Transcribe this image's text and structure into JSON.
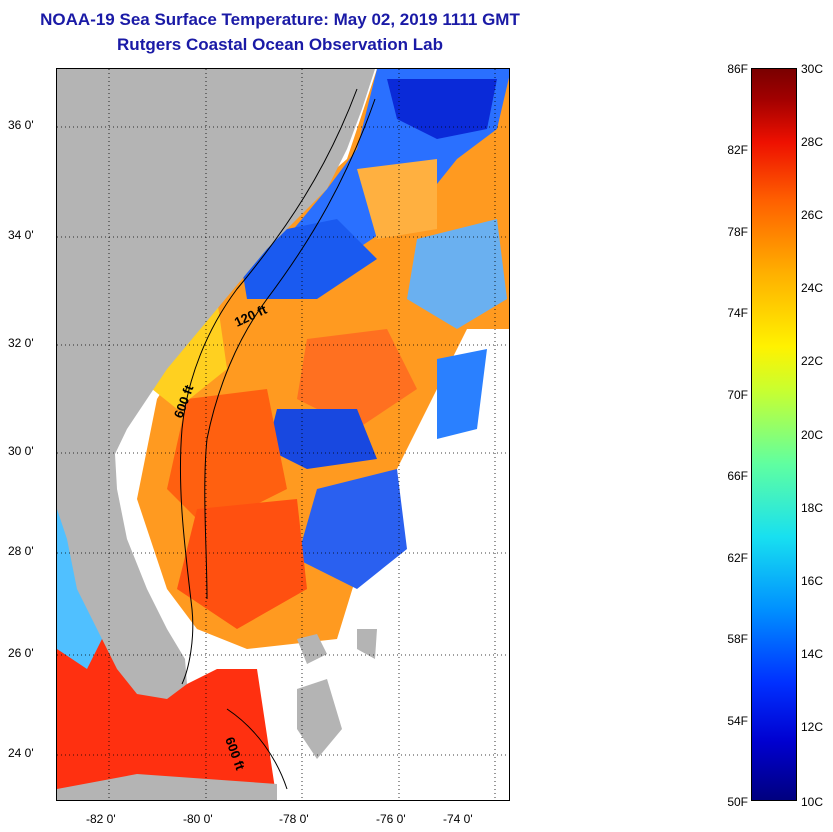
{
  "header": {
    "title_line1": "NOAA-19 Sea Surface Temperature:  May 02, 2019 1111 GMT",
    "title_line2": "Rutgers Coastal Ocean Observation Lab"
  },
  "map": {
    "lat_labels": [
      "36 0'",
      "34 0'",
      "32 0'",
      "30 0'",
      "28 0'",
      "26 0'",
      "24 0'"
    ],
    "lon_labels": [
      "-82 0'",
      "-80 0'",
      "-78 0'",
      "-76 0'",
      "-74 0'"
    ],
    "isobath_labels": [
      "120 ft",
      "600 ft",
      "600 ft"
    ],
    "colors": {
      "land": "#b4b4b4",
      "no_data": "#ffffff",
      "warm_water": "#ff3010",
      "mid_water": "#ff9a20",
      "cool_water": "#20c0ff",
      "cold_water": "#0a2ad8"
    }
  },
  "colorbar": {
    "fahrenheit_labels": [
      "86F",
      "82F",
      "78F",
      "74F",
      "70F",
      "66F",
      "62F",
      "58F",
      "54F",
      "50F"
    ],
    "celsius_labels": [
      "30C",
      "28C",
      "26C",
      "24C",
      "22C",
      "20C",
      "18C",
      "16C",
      "14C",
      "12C",
      "10C"
    ],
    "range_f": [
      50,
      86
    ],
    "range_c": [
      10,
      30
    ]
  }
}
